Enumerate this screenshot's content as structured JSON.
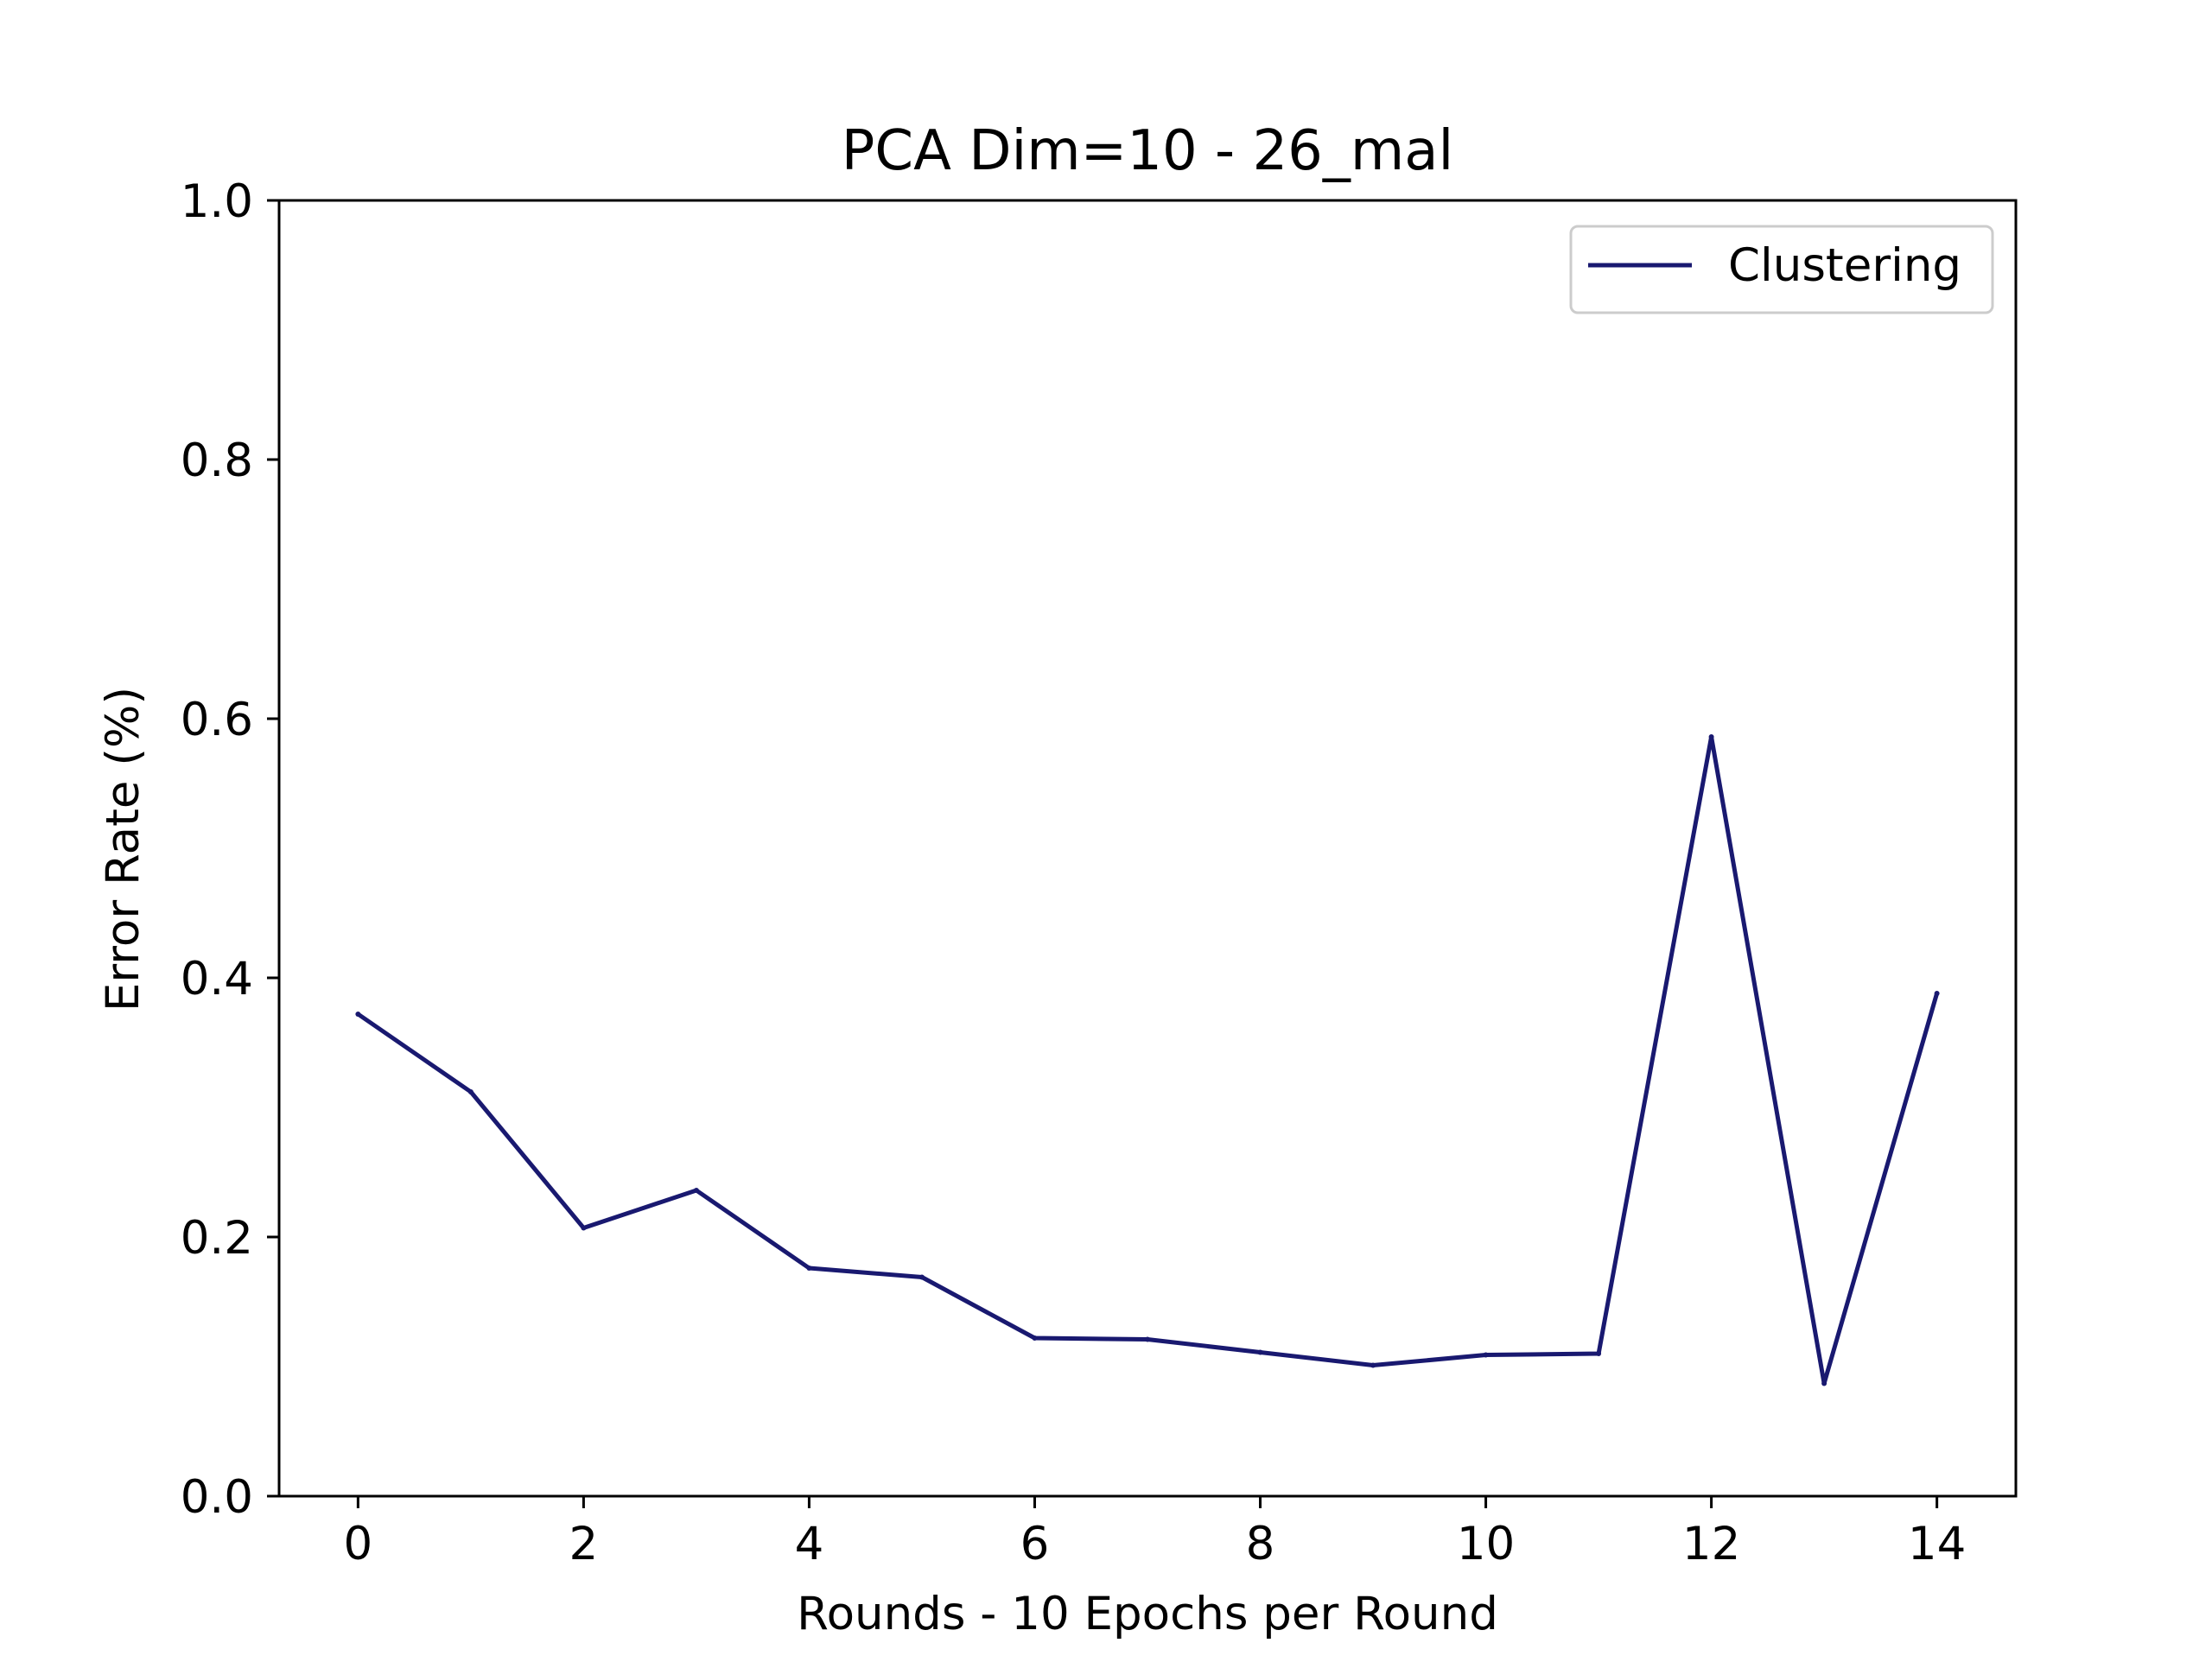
{
  "chart_data": {
    "type": "line",
    "title": "PCA Dim=10 - 26_mal",
    "xlabel": "Rounds - 10 Epochs per Round",
    "ylabel": "Error Rate (%)",
    "xlim": [
      -0.7,
      14.7
    ],
    "ylim": [
      0.0,
      1.0
    ],
    "xticks": [
      0,
      2,
      4,
      6,
      8,
      10,
      12,
      14
    ],
    "xtick_labels": [
      "0",
      "2",
      "4",
      "6",
      "8",
      "10",
      "12",
      "14"
    ],
    "yticks": [
      0.0,
      0.2,
      0.4,
      0.6,
      0.8,
      1.0
    ],
    "ytick_labels": [
      "0.0",
      "0.2",
      "0.4",
      "0.6",
      "0.8",
      "1.0"
    ],
    "grid": false,
    "legend_position": "top-right",
    "series": [
      {
        "name": "Clustering",
        "color": "#191970",
        "x": [
          0,
          1,
          2,
          3,
          4,
          5,
          6,
          7,
          8,
          9,
          10,
          11,
          12,
          13,
          14
        ],
        "y": [
          0.372,
          0.312,
          0.207,
          0.236,
          0.176,
          0.169,
          0.122,
          0.121,
          0.111,
          0.101,
          0.109,
          0.11,
          0.586,
          0.087,
          0.388
        ]
      }
    ]
  }
}
